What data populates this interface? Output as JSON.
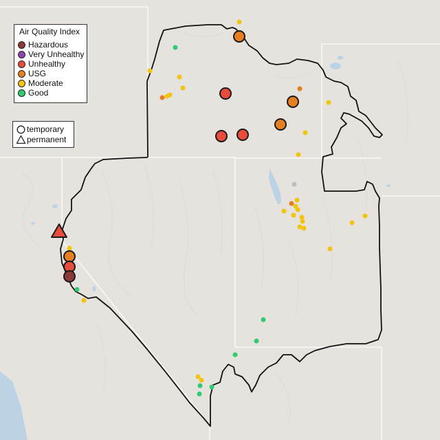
{
  "legend": {
    "title": "Air Quality Index",
    "categories": [
      {
        "label": "Hazardous",
        "color": "#8b3a3a"
      },
      {
        "label": "Very Unhealthy",
        "color": "#8e44ad"
      },
      {
        "label": "Unhealthy",
        "color": "#e74c3c"
      },
      {
        "label": "USG",
        "color": "#e67e22"
      },
      {
        "label": "Moderate",
        "color": "#f1c40f"
      },
      {
        "label": "Good",
        "color": "#2ecc71"
      }
    ],
    "types": [
      {
        "label": "temporary",
        "icon": "circle-icon"
      },
      {
        "label": "permanent",
        "icon": "triangle-icon"
      }
    ]
  },
  "colors": {
    "land": "#e6e3df",
    "water": "#bcd3e6",
    "boundary": "#111111",
    "state_line": "#ffffff"
  },
  "sensors": {
    "large": [
      {
        "aqi": "USG",
        "type": "temporary"
      },
      {
        "aqi": "Unhealthy",
        "type": "temporary"
      },
      {
        "aqi": "USG",
        "type": "temporary"
      },
      {
        "aqi": "USG",
        "type": "temporary"
      },
      {
        "aqi": "Unhealthy",
        "type": "temporary"
      },
      {
        "aqi": "Unhealthy",
        "type": "temporary"
      },
      {
        "aqi": "Unhealthy",
        "type": "permanent"
      },
      {
        "aqi": "USG",
        "type": "temporary"
      },
      {
        "aqi": "Unhealthy",
        "type": "temporary"
      },
      {
        "aqi": "Hazardous",
        "type": "temporary"
      }
    ],
    "small": [
      {
        "aqi": "Moderate"
      },
      {
        "aqi": "Good"
      },
      {
        "aqi": "Moderate"
      },
      {
        "aqi": "Moderate"
      },
      {
        "aqi": "Moderate"
      },
      {
        "aqi": "Moderate"
      },
      {
        "aqi": "USG"
      },
      {
        "aqi": "USG"
      },
      {
        "aqi": "Moderate"
      },
      {
        "aqi": "Moderate"
      },
      {
        "aqi": "Moderate"
      },
      {
        "aqi": "Moderate"
      },
      {
        "aqi": "Moderate"
      },
      {
        "aqi": "Moderate"
      },
      {
        "aqi": "Moderate"
      },
      {
        "aqi": "USG"
      },
      {
        "aqi": "Moderate"
      },
      {
        "aqi": "Moderate"
      },
      {
        "aqi": "Moderate"
      },
      {
        "aqi": "Moderate"
      },
      {
        "aqi": "Moderate"
      },
      {
        "aqi": "Moderate"
      },
      {
        "aqi": "Moderate"
      },
      {
        "aqi": "Moderate"
      },
      {
        "aqi": "Moderate"
      },
      {
        "aqi": "Moderate"
      },
      {
        "aqi": "Moderate"
      },
      {
        "aqi": "Good"
      },
      {
        "aqi": "Moderate"
      },
      {
        "aqi": "Good"
      },
      {
        "aqi": "Good"
      },
      {
        "aqi": "Good"
      },
      {
        "aqi": "Moderate"
      },
      {
        "aqi": "Moderate"
      },
      {
        "aqi": "Good"
      },
      {
        "aqi": "Good"
      },
      {
        "aqi": "Good"
      }
    ]
  }
}
